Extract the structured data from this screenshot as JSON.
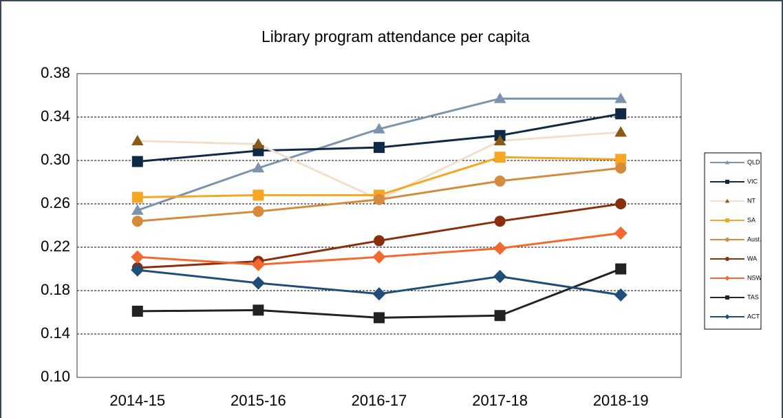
{
  "chart_data": {
    "type": "line",
    "title": "Library program attendance per capita",
    "categories": [
      "2014-15",
      "2015-16",
      "2016-17",
      "2017-18",
      "2018-19"
    ],
    "ylim": [
      0.1,
      0.38
    ],
    "yticks": [
      {
        "value": 0.1,
        "label": "0.10"
      },
      0.14,
      0.18,
      0.22,
      0.26,
      {
        "value": 0.3,
        "label": "0.30"
      },
      0.34,
      0.38
    ],
    "grid": true,
    "legend": "right",
    "series": [
      {
        "name": "QLD",
        "color": "#7b93ad",
        "marker": "triangle",
        "values": [
          0.254,
          0.293,
          0.329,
          0.357,
          0.357
        ]
      },
      {
        "name": "VIC",
        "color": "#0f2a47",
        "marker": "square",
        "values": [
          0.299,
          0.309,
          0.312,
          0.323,
          0.343
        ]
      },
      {
        "name": "NT",
        "color": "#f2dfcb",
        "marker_color": "#8b5a16",
        "marker": "triangle",
        "values": [
          0.318,
          0.315,
          0.264,
          0.318,
          0.326
        ]
      },
      {
        "name": "SA",
        "color": "#f5a623",
        "marker": "square",
        "values": [
          0.266,
          0.268,
          0.268,
          0.303,
          0.301
        ]
      },
      {
        "name": "Aust.",
        "color": "#d58a3c",
        "marker": "circle",
        "values": [
          0.244,
          0.253,
          0.264,
          0.281,
          0.293
        ]
      },
      {
        "name": "WA",
        "color": "#8b2e0e",
        "marker": "circle",
        "values": [
          0.201,
          0.207,
          0.226,
          0.244,
          0.26
        ]
      },
      {
        "name": "NSW",
        "color": "#f26a2e",
        "marker": "diamond",
        "values": [
          0.211,
          0.204,
          0.211,
          0.219,
          0.233
        ]
      },
      {
        "name": "TAS",
        "color": "#222222",
        "marker": "square",
        "values": [
          0.161,
          0.162,
          0.155,
          0.157,
          0.2
        ]
      },
      {
        "name": "ACT",
        "color": "#1f4e79",
        "marker": "diamond",
        "values": [
          0.199,
          0.187,
          0.177,
          0.193,
          0.176
        ]
      }
    ]
  }
}
